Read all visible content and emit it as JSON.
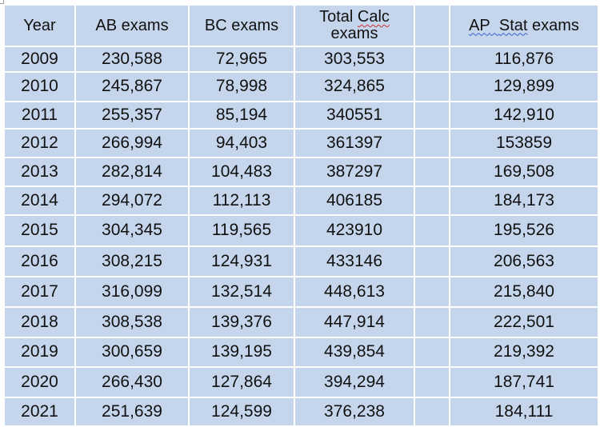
{
  "table": {
    "headers": {
      "year": "Year",
      "ab": "AB exams",
      "bc": "BC exams",
      "total_line1": "Total",
      "total_word_calc": "Calc",
      "total_line2": "exams",
      "blank": "",
      "stat_ap": "AP",
      "stat_word": "Stat",
      "stat_rest": "exams"
    },
    "rows": [
      {
        "year": "2009",
        "ab": "230,588",
        "bc": "72,965",
        "total": "303,553",
        "blank": "",
        "stat": "116,876"
      },
      {
        "year": "2010",
        "ab": "245,867",
        "bc": "78,998",
        "total": "324,865",
        "blank": "",
        "stat": "129,899"
      },
      {
        "year": "2011",
        "ab": "255,357",
        "bc": "85,194",
        "total": "340551",
        "blank": "",
        "stat": "142,910"
      },
      {
        "year": "2012",
        "ab": "266,994",
        "bc": "94,403",
        "total": "361397",
        "blank": "",
        "stat": "153859"
      },
      {
        "year": "2013",
        "ab": "282,814",
        "bc": "104,483",
        "total": "387297",
        "blank": "",
        "stat": "169,508"
      },
      {
        "year": "2014",
        "ab": "294,072",
        "bc": "112,113",
        "total": "406185",
        "blank": "",
        "stat": "184,173"
      },
      {
        "year": "2015",
        "ab": "304,345",
        "bc": "119,565",
        "total": "423910",
        "blank": "",
        "stat": "195,526"
      },
      {
        "year": "2016",
        "ab": "308,215",
        "bc": "124,931",
        "total": "433146",
        "blank": "",
        "stat": "206,563"
      },
      {
        "year": "2017",
        "ab": "316,099",
        "bc": "132,514",
        "total": "448,613",
        "blank": "",
        "stat": "215,840"
      },
      {
        "year": "2018",
        "ab": "308,538",
        "bc": "139,376",
        "total": "447,914",
        "blank": "",
        "stat": "222,501"
      },
      {
        "year": "2019",
        "ab": "300,659",
        "bc": "139,195",
        "total": "439,854",
        "blank": "",
        "stat": "219,392"
      },
      {
        "year": "2020",
        "ab": "266,430",
        "bc": "127,864",
        "total": "394,294",
        "blank": "",
        "stat": "187,741"
      },
      {
        "year": "2021",
        "ab": "251,639",
        "bc": "124,599",
        "total": "376,238",
        "blank": "",
        "stat": "184,111"
      }
    ]
  },
  "colors": {
    "cell_fill": "#c5d6ec",
    "grid_line": "#ffffff",
    "text": "#111111",
    "spellcheck_red": "#d03030",
    "spellcheck_blue": "#3a5fcd"
  }
}
